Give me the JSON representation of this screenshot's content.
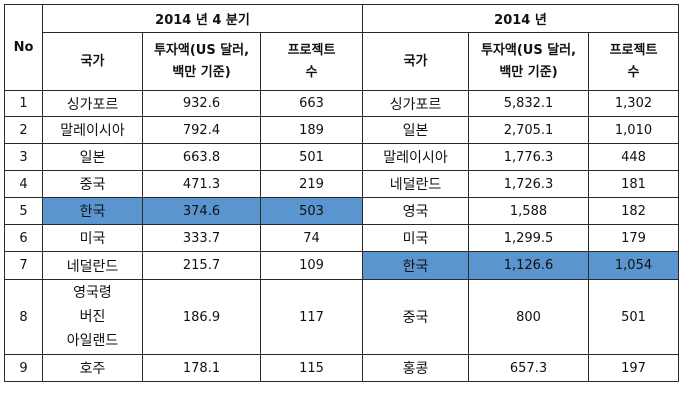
{
  "colors": {
    "highlight": "#5b95cf",
    "border": "#2a2a2a",
    "text": "#111111"
  },
  "table": {
    "no_header": "No",
    "q4_header": "2014 년 4 분기",
    "year_header": "2014 년",
    "col_country": "국가",
    "col_invest_line1": "투자액(US 달러,",
    "col_invest_line2": "백만 기준)",
    "col_projects_line1": "프로젝트",
    "col_projects_line2": "수",
    "rows": [
      {
        "no": "1",
        "q4": {
          "country": [
            "싱가포르"
          ],
          "invest": "932.6",
          "projects": "663"
        },
        "year": {
          "country": "싱가포르",
          "invest": "5,832.1",
          "projects": "1,302"
        }
      },
      {
        "no": "2",
        "q4": {
          "country": [
            "말레이시아"
          ],
          "invest": "792.4",
          "projects": "189"
        },
        "year": {
          "country": "일본",
          "invest": "2,705.1",
          "projects": "1,010"
        }
      },
      {
        "no": "3",
        "q4": {
          "country": [
            "일본"
          ],
          "invest": "663.8",
          "projects": "501"
        },
        "year": {
          "country": "말레이시아",
          "invest": "1,776.3",
          "projects": "448"
        }
      },
      {
        "no": "4",
        "q4": {
          "country": [
            "중국"
          ],
          "invest": "471.3",
          "projects": "219"
        },
        "year": {
          "country": "네덜란드",
          "invest": "1,726.3",
          "projects": "181"
        }
      },
      {
        "no": "5",
        "q4": {
          "country": [
            "한국"
          ],
          "invest": "374.6",
          "projects": "503"
        },
        "year": {
          "country": "영국",
          "invest": "1,588",
          "projects": "182"
        }
      },
      {
        "no": "6",
        "q4": {
          "country": [
            "미국"
          ],
          "invest": "333.7",
          "projects": "74"
        },
        "year": {
          "country": "미국",
          "invest": "1,299.5",
          "projects": "179"
        }
      },
      {
        "no": "7",
        "q4": {
          "country": [
            "네덜란드"
          ],
          "invest": "215.7",
          "projects": "109"
        },
        "year": {
          "country": "한국",
          "invest": "1,126.6",
          "projects": "1,054"
        }
      },
      {
        "no": "8",
        "q4": {
          "country": [
            "영국령",
            "버진",
            "아일랜드"
          ],
          "invest": "186.9",
          "projects": "117"
        },
        "year": {
          "country": "중국",
          "invest": "800",
          "projects": "501"
        }
      },
      {
        "no": "9",
        "q4": {
          "country": [
            "호주"
          ],
          "invest": "178.1",
          "projects": "115"
        },
        "year": {
          "country": "홍콩",
          "invest": "657.3",
          "projects": "197"
        }
      }
    ]
  }
}
